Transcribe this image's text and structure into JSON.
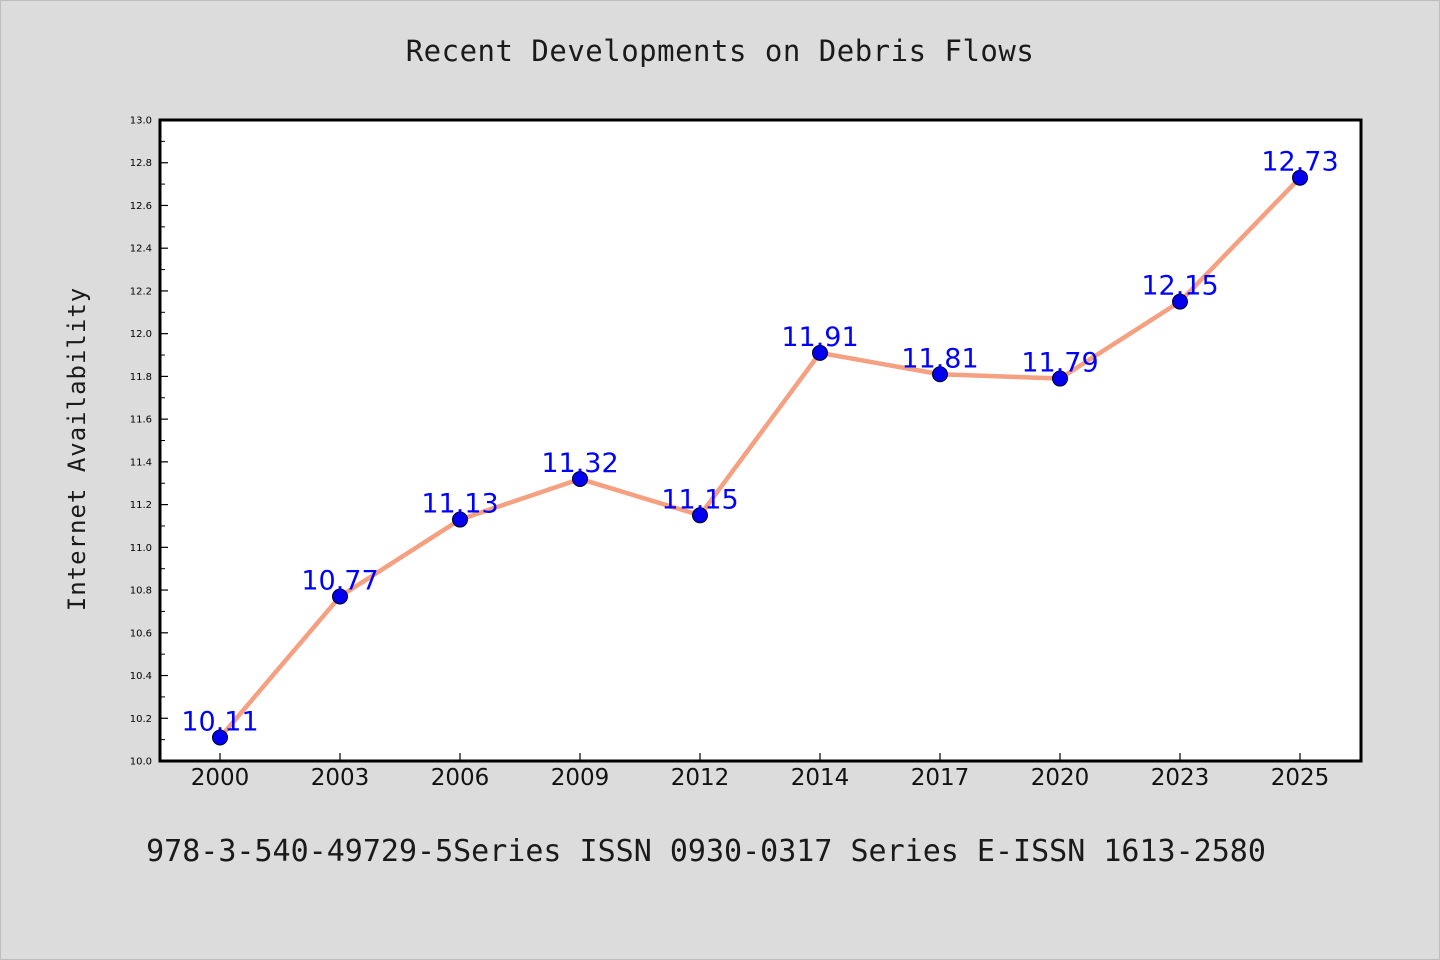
{
  "chart_data": {
    "type": "line",
    "title": "Recent Developments on Debris Flows",
    "xlabel": "",
    "ylabel": "Internet Availability",
    "categories": [
      "2000",
      "2003",
      "2006",
      "2009",
      "2012",
      "2014",
      "2017",
      "2020",
      "2023",
      "2025"
    ],
    "values": [
      10.11,
      10.77,
      11.13,
      11.32,
      11.15,
      11.91,
      11.81,
      11.79,
      12.15,
      12.73
    ],
    "data_labels": [
      "10.11",
      "10.77",
      "11.13",
      "11.32",
      "11.15",
      "11.91",
      "11.81",
      "11.79",
      "12.15",
      "12.73"
    ],
    "ylim": [
      10.0,
      13.0
    ],
    "yticks": [
      "10.0",
      "10.2",
      "10.4",
      "10.6",
      "10.8",
      "11.0",
      "11.2",
      "11.4",
      "11.6",
      "11.8",
      "12.0",
      "12.2",
      "12.4",
      "12.6",
      "12.8",
      "13.0"
    ],
    "grid": false,
    "legend": "none",
    "line_color": "#f5a080",
    "marker_color": "#0000ee",
    "label_color": "#0000ff"
  },
  "footer": "978-3-540-49729-5Series ISSN 0930-0317 Series E-ISSN 1613-2580"
}
